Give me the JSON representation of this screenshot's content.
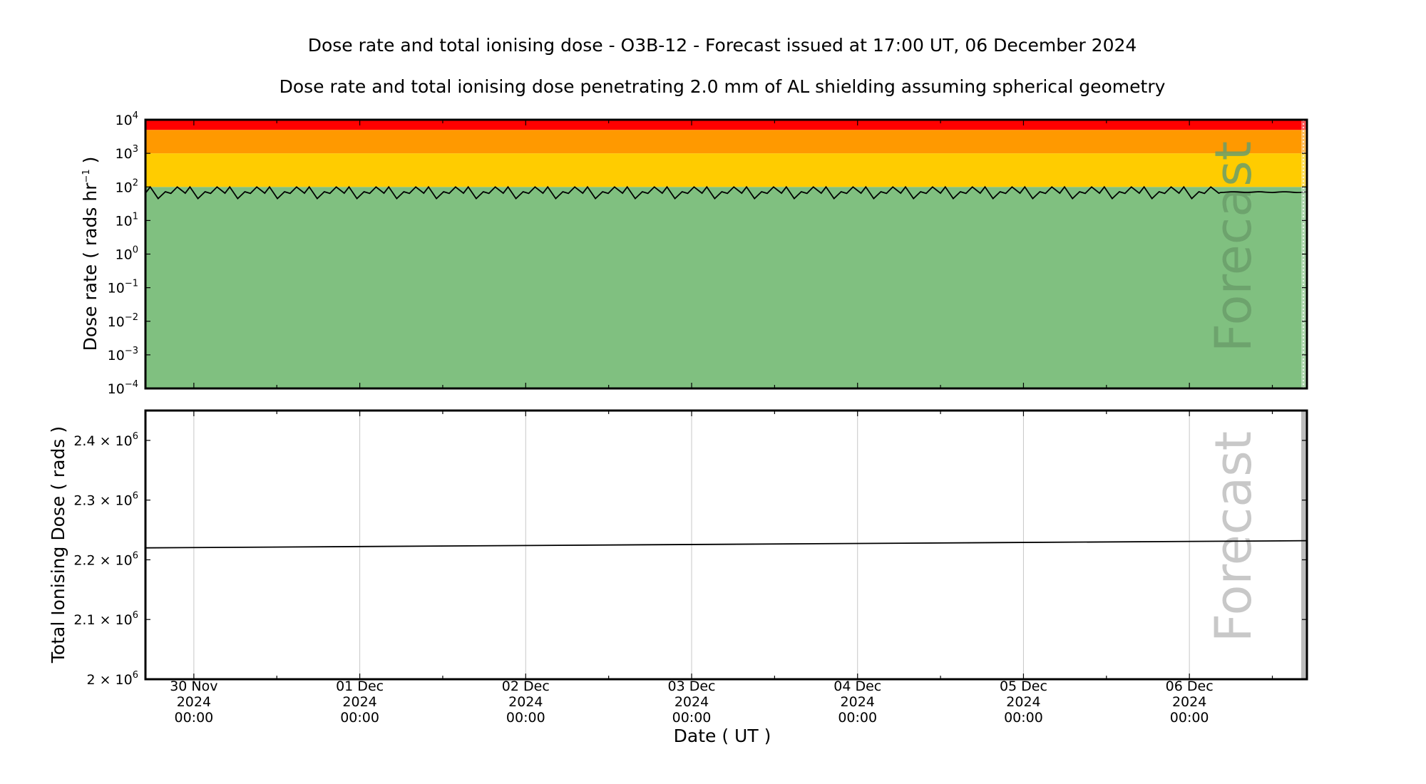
{
  "figure": {
    "title": "Dose rate and total ionising dose - O3B-12 - Forecast issued at 17:00 UT, 06 December 2024",
    "subtitle": "Dose rate and total ionising dose penetrating 2.0 mm of AL shielding assuming spherical geometry",
    "forecast_label": "Forecast",
    "xlabel": "Date ( UT )",
    "x_ticks": [
      {
        "day": "30 Nov",
        "year": "2024",
        "time": "00:00"
      },
      {
        "day": "01 Dec",
        "year": "2024",
        "time": "00:00"
      },
      {
        "day": "02 Dec",
        "year": "2024",
        "time": "00:00"
      },
      {
        "day": "03 Dec",
        "year": "2024",
        "time": "00:00"
      },
      {
        "day": "04 Dec",
        "year": "2024",
        "time": "00:00"
      },
      {
        "day": "05 Dec",
        "year": "2024",
        "time": "00:00"
      },
      {
        "day": "06 Dec",
        "year": "2024",
        "time": "00:00"
      }
    ]
  },
  "chart_data": [
    {
      "type": "line",
      "panel": "dose-rate",
      "ylabel_main": "Dose rate ( rads hr",
      "ylabel_sup": "−1",
      "ylabel_end": " )",
      "yscale": "log",
      "ylim": [
        0.0001,
        10000
      ],
      "y_ticks": [
        {
          "base": "10",
          "exp": "4"
        },
        {
          "base": "10",
          "exp": "3"
        },
        {
          "base": "10",
          "exp": "2"
        },
        {
          "base": "10",
          "exp": "1"
        },
        {
          "base": "10",
          "exp": "0"
        },
        {
          "base": "10",
          "exp": "−1"
        },
        {
          "base": "10",
          "exp": "−2"
        },
        {
          "base": "10",
          "exp": "−3"
        },
        {
          "base": "10",
          "exp": "−4"
        }
      ],
      "xlim": [
        "2024-11-29 17:00",
        "2024-12-06 17:00"
      ],
      "forecast_start": "2024-12-06 17:00",
      "bands": [
        {
          "from": 0.0001,
          "to": 100,
          "color": "#80c080"
        },
        {
          "from": 100,
          "to": 1000,
          "color": "#ffcc00"
        },
        {
          "from": 1000,
          "to": 5000,
          "color": "#ff9900"
        },
        {
          "from": 5000,
          "to": 10000,
          "color": "#ff0000"
        }
      ],
      "series": [
        {
          "color": "#000000",
          "orbit_period_hours": 5.75,
          "orbit_profile": [
            {
              "phase": 0.0,
              "value": 65
            },
            {
              "phase": 0.12,
              "value": 100
            },
            {
              "phase": 0.32,
              "value": 45
            },
            {
              "phase": 0.5,
              "value": 72
            },
            {
              "phase": 0.64,
              "value": 64
            },
            {
              "phase": 0.8,
              "value": 100
            },
            {
              "phase": 1.0,
              "value": 65
            }
          ],
          "steady_from": "2024-12-06 04:30",
          "steady_value": 70
        }
      ]
    },
    {
      "type": "line",
      "panel": "total-dose",
      "ylabel": "Total Ionising Dose ( rads )",
      "ylim": [
        2000000,
        2450000
      ],
      "y_ticks": [
        {
          "value": 2400000,
          "label": "2.4 × 10",
          "exp": "6"
        },
        {
          "value": 2300000,
          "label": "2.3 × 10",
          "exp": "6"
        },
        {
          "value": 2200000,
          "label": "2.2 × 10",
          "exp": "6"
        },
        {
          "value": 2100000,
          "label": "2.1 × 10",
          "exp": "6"
        },
        {
          "value": 2000000,
          "label": "2 × 10",
          "exp": "6"
        }
      ],
      "xlim": [
        "2024-11-29 17:00",
        "2024-12-06 17:00"
      ],
      "forecast_start": "2024-12-06 17:00",
      "grid": true,
      "series": [
        {
          "color": "#000000",
          "x": [
            "2024-11-29 17:00",
            "2024-12-06 17:00"
          ],
          "y": [
            2220000,
            2232000
          ]
        }
      ]
    }
  ]
}
